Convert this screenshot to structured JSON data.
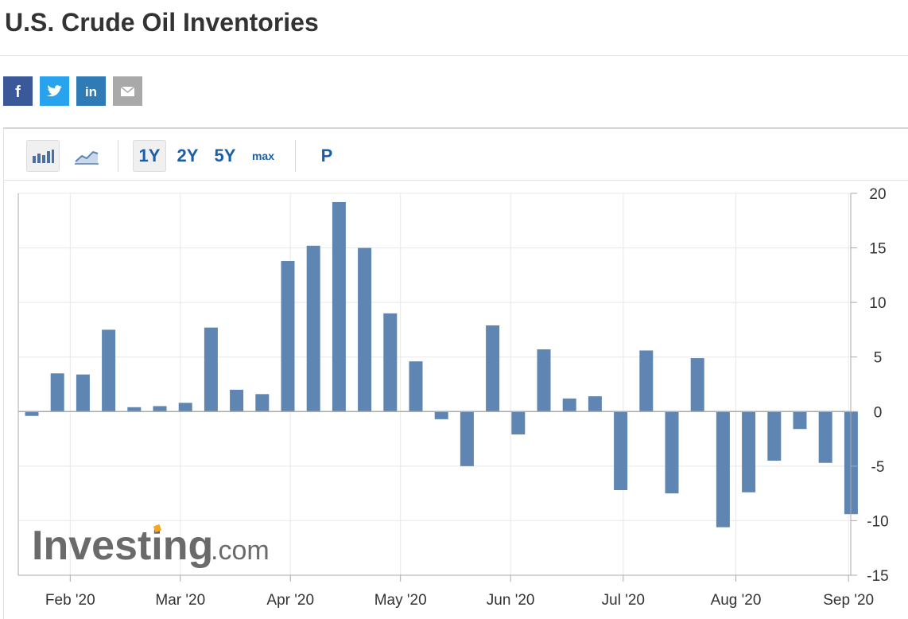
{
  "page": {
    "title": "U.S. Crude Oil Inventories"
  },
  "share": [
    {
      "name": "facebook-icon",
      "glyph": "f",
      "color": "#3b5998"
    },
    {
      "name": "twitter-icon",
      "glyph": "",
      "color": "#2aa3ef"
    },
    {
      "name": "linkedin-icon",
      "glyph": "in",
      "color": "#2e7bb6"
    },
    {
      "name": "email-icon",
      "glyph": "",
      "color": "#a9a9a9"
    }
  ],
  "toolbar": {
    "bar_chart_icon": "bar-chart-icon",
    "line_chart_icon": "line-chart-icon",
    "ranges": [
      "1Y",
      "2Y",
      "5Y",
      "max"
    ],
    "active_range": "1Y",
    "p_label": "P"
  },
  "watermark": {
    "brand": "Investing",
    "suffix": ".com",
    "brand_color": "#6a6a6a",
    "accent_color": "#f5a623"
  },
  "colors": {
    "bar": "#5f86b3",
    "grid": "#e8e8e8",
    "axis": "#aaaaaa",
    "tick_text": "#333333"
  },
  "chart_data": {
    "type": "bar",
    "title": "",
    "xlabel": "",
    "ylabel": "",
    "ylim": [
      -15,
      20
    ],
    "yticks": [
      20,
      15,
      10,
      5,
      0,
      -5,
      -10,
      -15
    ],
    "y_axis_position": "right",
    "grid": true,
    "x_tick_labels": [
      "Feb '20",
      "Mar '20",
      "Apr '20",
      "May '20",
      "Jun '20",
      "Jul '20",
      "Aug '20",
      "Sep '20"
    ],
    "x_tick_bar_index": [
      1.5,
      5.8,
      10.1,
      14.4,
      18.7,
      23.1,
      27.5,
      31.9
    ],
    "dates": [
      "2020-01-22",
      "2020-01-29",
      "2020-02-05",
      "2020-02-12",
      "2020-02-19",
      "2020-02-26",
      "2020-03-04",
      "2020-03-11",
      "2020-03-18",
      "2020-03-25",
      "2020-04-01",
      "2020-04-08",
      "2020-04-15",
      "2020-04-22",
      "2020-04-29",
      "2020-05-06",
      "2020-05-13",
      "2020-05-20",
      "2020-05-28",
      "2020-06-03",
      "2020-06-10",
      "2020-06-17",
      "2020-06-24",
      "2020-07-01",
      "2020-07-08",
      "2020-07-15",
      "2020-07-22",
      "2020-07-29",
      "2020-08-05",
      "2020-08-12",
      "2020-08-19",
      "2020-08-26",
      "2020-09-02"
    ],
    "values": [
      -0.4,
      3.5,
      3.4,
      7.5,
      0.4,
      0.5,
      0.8,
      7.7,
      2.0,
      1.6,
      13.8,
      15.2,
      19.2,
      15.0,
      9.0,
      4.6,
      -0.7,
      -5.0,
      7.9,
      -2.1,
      5.7,
      1.2,
      1.4,
      -7.2,
      5.6,
      -7.5,
      4.9,
      -10.6,
      -7.4,
      -4.5,
      -1.6,
      -4.7,
      -9.4
    ]
  }
}
